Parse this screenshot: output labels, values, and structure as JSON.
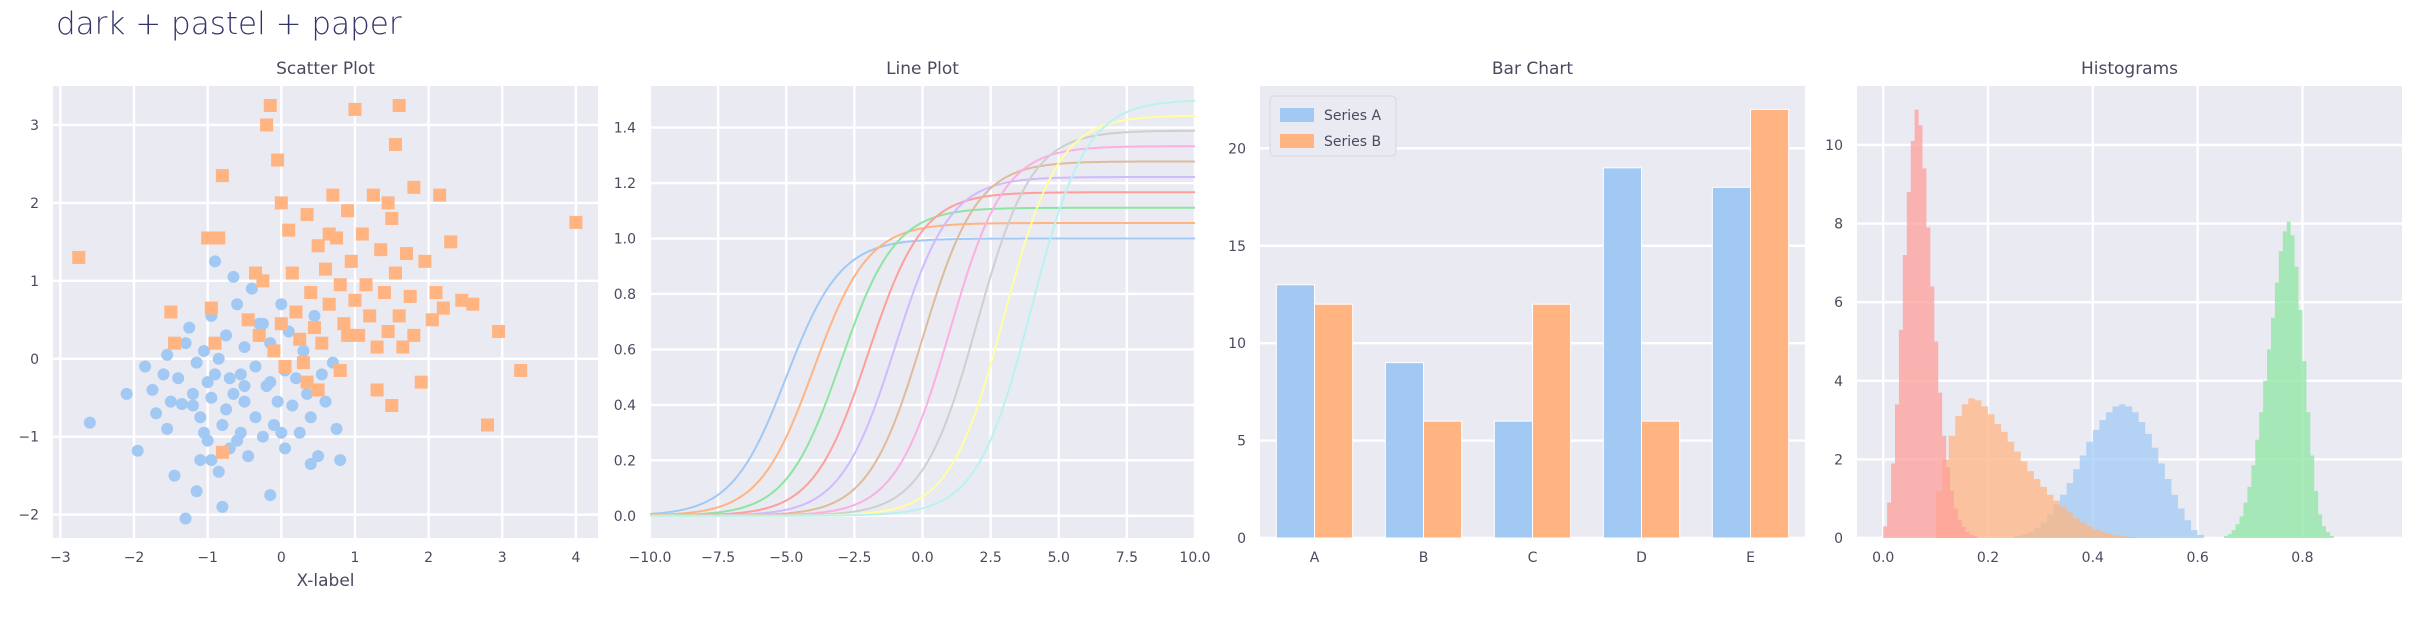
{
  "figure": {
    "suptitle": "dark + pastel + paper"
  },
  "chart_data": [
    {
      "type": "scatter",
      "title": "Scatter Plot",
      "xlabel": "X-label",
      "ylabel": "",
      "xlim": [
        -3.1,
        4.3
      ],
      "ylim": [
        -2.3,
        3.5
      ],
      "xticks": [
        -3,
        -2,
        -1,
        0,
        1,
        2,
        3,
        4
      ],
      "yticks": [
        -2,
        -1,
        0,
        1,
        2,
        3
      ],
      "grid": true,
      "series": [
        {
          "color": "#a1c9f4",
          "marker": "circle",
          "points": [
            [
              -2.6,
              -0.82
            ],
            [
              -2.1,
              -0.45
            ],
            [
              -1.95,
              -1.18
            ],
            [
              -1.85,
              -0.1
            ],
            [
              -1.75,
              -0.4
            ],
            [
              -1.7,
              -0.7
            ],
            [
              -1.6,
              -0.2
            ],
            [
              -1.55,
              -0.9
            ],
            [
              -1.55,
              0.05
            ],
            [
              -1.5,
              -0.55
            ],
            [
              -1.45,
              -1.5
            ],
            [
              -1.4,
              -0.25
            ],
            [
              -1.35,
              -0.58
            ],
            [
              -1.3,
              0.2
            ],
            [
              -1.3,
              -2.05
            ],
            [
              -1.25,
              0.4
            ],
            [
              -1.2,
              -0.45
            ],
            [
              -1.15,
              -1.7
            ],
            [
              -1.15,
              -0.05
            ],
            [
              -1.1,
              -0.75
            ],
            [
              -1.1,
              -1.3
            ],
            [
              -1.05,
              0.1
            ],
            [
              -1.05,
              -0.95
            ],
            [
              -1.0,
              -0.3
            ],
            [
              -1.0,
              -1.05
            ],
            [
              -0.95,
              0.55
            ],
            [
              -0.95,
              -0.5
            ],
            [
              -0.9,
              1.25
            ],
            [
              -0.9,
              -0.2
            ],
            [
              -0.85,
              0.0
            ],
            [
              -0.85,
              -1.45
            ],
            [
              -0.8,
              -0.85
            ],
            [
              -0.8,
              -1.9
            ],
            [
              -0.75,
              0.3
            ],
            [
              -0.75,
              -0.65
            ],
            [
              -0.7,
              -1.15
            ],
            [
              -0.7,
              -0.25
            ],
            [
              -0.65,
              1.05
            ],
            [
              -0.65,
              -0.45
            ],
            [
              -0.6,
              0.7
            ],
            [
              -0.55,
              -0.2
            ],
            [
              -0.55,
              -0.95
            ],
            [
              -0.5,
              0.15
            ],
            [
              -0.5,
              -0.55
            ],
            [
              -0.45,
              -1.25
            ],
            [
              -0.4,
              0.9
            ],
            [
              -0.35,
              -0.1
            ],
            [
              -0.35,
              -0.75
            ],
            [
              -0.3,
              0.45
            ],
            [
              -0.25,
              -1.0
            ],
            [
              -0.2,
              -0.35
            ],
            [
              -0.15,
              0.2
            ],
            [
              -0.15,
              -1.75
            ],
            [
              -0.1,
              -0.85
            ],
            [
              -0.05,
              -0.55
            ],
            [
              0.0,
              0.7
            ],
            [
              0.05,
              -0.15
            ],
            [
              0.05,
              -1.15
            ],
            [
              0.1,
              0.35
            ],
            [
              0.15,
              -0.6
            ],
            [
              0.2,
              -0.25
            ],
            [
              0.25,
              -0.95
            ],
            [
              0.3,
              0.1
            ],
            [
              0.35,
              -0.45
            ],
            [
              0.4,
              -0.75
            ],
            [
              0.4,
              -1.35
            ],
            [
              0.45,
              0.55
            ],
            [
              0.5,
              -1.25
            ],
            [
              0.55,
              -0.2
            ],
            [
              0.6,
              -0.55
            ],
            [
              0.7,
              -0.05
            ],
            [
              0.75,
              -0.9
            ],
            [
              0.8,
              -1.3
            ],
            [
              -0.95,
              -1.3
            ],
            [
              -0.5,
              -0.35
            ],
            [
              0.0,
              -0.95
            ],
            [
              -0.25,
              0.45
            ],
            [
              -1.2,
              -0.6
            ],
            [
              -0.6,
              -1.05
            ],
            [
              -0.15,
              -0.3
            ]
          ]
        },
        {
          "color": "#ffb482",
          "marker": "square",
          "points": [
            [
              -2.75,
              1.3
            ],
            [
              -1.5,
              0.6
            ],
            [
              -1.45,
              0.2
            ],
            [
              -1.0,
              1.55
            ],
            [
              -0.95,
              0.65
            ],
            [
              -0.9,
              0.2
            ],
            [
              -0.85,
              1.55
            ],
            [
              -0.8,
              2.35
            ],
            [
              -0.8,
              -1.2
            ],
            [
              -0.45,
              0.5
            ],
            [
              -0.35,
              1.1
            ],
            [
              -0.3,
              0.3
            ],
            [
              -0.2,
              3.0
            ],
            [
              -0.15,
              3.25
            ],
            [
              -0.1,
              0.1
            ],
            [
              -0.05,
              2.55
            ],
            [
              0.0,
              2.0
            ],
            [
              0.0,
              0.45
            ],
            [
              0.05,
              -0.1
            ],
            [
              0.1,
              1.65
            ],
            [
              0.15,
              1.1
            ],
            [
              0.2,
              0.6
            ],
            [
              0.25,
              0.25
            ],
            [
              0.3,
              -0.05
            ],
            [
              0.35,
              1.85
            ],
            [
              0.4,
              0.85
            ],
            [
              0.45,
              0.4
            ],
            [
              0.5,
              1.45
            ],
            [
              0.5,
              -0.4
            ],
            [
              0.55,
              0.2
            ],
            [
              0.6,
              1.15
            ],
            [
              0.65,
              0.7
            ],
            [
              0.7,
              2.1
            ],
            [
              0.75,
              1.55
            ],
            [
              0.8,
              -0.15
            ],
            [
              0.8,
              0.95
            ],
            [
              0.85,
              0.45
            ],
            [
              0.9,
              1.9
            ],
            [
              0.95,
              1.25
            ],
            [
              1.0,
              0.75
            ],
            [
              1.0,
              3.2
            ],
            [
              1.05,
              0.3
            ],
            [
              1.1,
              1.6
            ],
            [
              1.15,
              0.95
            ],
            [
              1.2,
              0.55
            ],
            [
              1.25,
              2.1
            ],
            [
              1.3,
              -0.4
            ],
            [
              1.3,
              0.15
            ],
            [
              1.35,
              1.4
            ],
            [
              1.4,
              0.85
            ],
            [
              1.45,
              0.35
            ],
            [
              1.5,
              1.8
            ],
            [
              1.5,
              -0.6
            ],
            [
              1.55,
              1.1
            ],
            [
              1.55,
              2.75
            ],
            [
              1.6,
              0.55
            ],
            [
              1.6,
              3.25
            ],
            [
              1.65,
              0.15
            ],
            [
              1.7,
              1.35
            ],
            [
              1.75,
              0.8
            ],
            [
              1.8,
              2.2
            ],
            [
              1.8,
              0.3
            ],
            [
              1.9,
              -0.3
            ],
            [
              1.95,
              1.25
            ],
            [
              2.05,
              0.5
            ],
            [
              2.1,
              0.85
            ],
            [
              2.2,
              0.65
            ],
            [
              2.3,
              1.5
            ],
            [
              2.45,
              0.75
            ],
            [
              2.6,
              0.7
            ],
            [
              2.8,
              -0.85
            ],
            [
              2.95,
              0.35
            ],
            [
              3.25,
              -0.15
            ],
            [
              4.0,
              1.75
            ],
            [
              -0.25,
              1.0
            ],
            [
              0.65,
              1.6
            ],
            [
              1.45,
              2.0
            ],
            [
              0.9,
              0.3
            ],
            [
              2.15,
              2.1
            ],
            [
              0.35,
              -0.3
            ]
          ]
        }
      ]
    },
    {
      "type": "line",
      "title": "Line Plot",
      "xlabel": "",
      "ylabel": "",
      "xlim": [
        -10,
        10
      ],
      "ylim": [
        -0.08,
        1.55
      ],
      "xticks": [
        -10,
        -7.5,
        -5,
        -2.5,
        0,
        2.5,
        5,
        7.5,
        10
      ],
      "xticklabels": [
        "−10.0",
        "−7.5",
        "−5.0",
        "−2.5",
        "0.0",
        "2.5",
        "5.0",
        "7.5",
        "10.0"
      ],
      "yticks": [
        0,
        0.2,
        0.4,
        0.6,
        0.8,
        1.0,
        1.2,
        1.4
      ],
      "yticklabels": [
        "0.0",
        "0.2",
        "0.4",
        "0.6",
        "0.8",
        "1.0",
        "1.2",
        "1.4"
      ],
      "grid": true,
      "curve": "sigmoid",
      "series": [
        {
          "color": "#a1c9f4",
          "amplitude": 1.0,
          "center": -5.0
        },
        {
          "color": "#ffb482",
          "amplitude": 1.056,
          "center": -4.0
        },
        {
          "color": "#8de5a1",
          "amplitude": 1.111,
          "center": -3.0
        },
        {
          "color": "#ff9f9b",
          "amplitude": 1.167,
          "center": -2.0
        },
        {
          "color": "#d0bbff",
          "amplitude": 1.222,
          "center": -1.0
        },
        {
          "color": "#debb9b",
          "amplitude": 1.278,
          "center": 0.0
        },
        {
          "color": "#fab0e4",
          "amplitude": 1.333,
          "center": 1.0
        },
        {
          "color": "#cfcfcf",
          "amplitude": 1.389,
          "center": 2.0
        },
        {
          "color": "#fffea3",
          "amplitude": 1.444,
          "center": 3.0
        },
        {
          "color": "#b9f2f0",
          "amplitude": 1.5,
          "center": 4.0
        }
      ]
    },
    {
      "type": "bar",
      "title": "Bar Chart",
      "categories": [
        "A",
        "B",
        "C",
        "D",
        "E"
      ],
      "ylim": [
        0,
        23.2
      ],
      "yticks": [
        0,
        5,
        10,
        15,
        20
      ],
      "grid": true,
      "legend": "top-left",
      "series": [
        {
          "name": "Series A",
          "color": "#a1c9f4",
          "values": [
            13,
            9,
            6,
            19,
            18
          ]
        },
        {
          "name": "Series B",
          "color": "#ffb482",
          "values": [
            12,
            6,
            12,
            6,
            22
          ]
        }
      ]
    },
    {
      "type": "histogram",
      "title": "Histograms",
      "xlim": [
        -0.05,
        0.99
      ],
      "ylim": [
        0,
        11.5
      ],
      "xticks": [
        0.0,
        0.2,
        0.4,
        0.6,
        0.8
      ],
      "xticklabels": [
        "0.0",
        "0.2",
        "0.4",
        "0.6",
        "0.8"
      ],
      "yticks": [
        0,
        2,
        4,
        6,
        8,
        10
      ],
      "grid": true,
      "alpha": 0.75,
      "series": [
        {
          "color": "#a1c9f4",
          "bin_start": 0.25,
          "bin_width": 0.0125,
          "counts": [
            0.05,
            0.1,
            0.15,
            0.25,
            0.4,
            0.6,
            0.85,
            1.1,
            1.4,
            1.75,
            2.1,
            2.45,
            2.75,
            3.0,
            3.2,
            3.35,
            3.4,
            3.35,
            3.2,
            2.95,
            2.65,
            2.3,
            1.9,
            1.5,
            1.1,
            0.75,
            0.45,
            0.2,
            0.08
          ]
        },
        {
          "color": "#ffb482",
          "bin_start": 0.1,
          "bin_width": 0.0125,
          "counts": [
            1.2,
            2.0,
            2.6,
            3.1,
            3.4,
            3.55,
            3.5,
            3.35,
            3.15,
            2.9,
            2.7,
            2.45,
            2.2,
            1.95,
            1.7,
            1.5,
            1.3,
            1.1,
            0.95,
            0.8,
            0.65,
            0.5,
            0.4,
            0.3,
            0.22,
            0.16,
            0.12,
            0.08,
            0.05,
            0.03,
            0.02,
            0.01,
            0.01,
            0.01
          ]
        },
        {
          "color": "#8de5a1",
          "bin_start": 0.65,
          "bin_width": 0.0075,
          "counts": [
            0.05,
            0.1,
            0.2,
            0.35,
            0.55,
            0.9,
            1.3,
            1.85,
            2.5,
            3.2,
            4.0,
            4.8,
            5.6,
            6.5,
            7.3,
            7.8,
            8.05,
            7.7,
            6.9,
            5.8,
            4.5,
            3.2,
            2.1,
            1.2,
            0.6,
            0.3,
            0.15,
            0.05
          ]
        },
        {
          "color": "#ff9f9b",
          "bin_start": 0.0,
          "bin_width": 0.0075,
          "counts": [
            0.3,
            0.9,
            1.9,
            3.4,
            5.3,
            7.2,
            8.8,
            10.1,
            10.9,
            10.5,
            9.4,
            7.9,
            6.4,
            5.0,
            3.7,
            2.6,
            1.8,
            1.2,
            0.75,
            0.45,
            0.28,
            0.15,
            0.08,
            0.04
          ]
        }
      ]
    }
  ]
}
